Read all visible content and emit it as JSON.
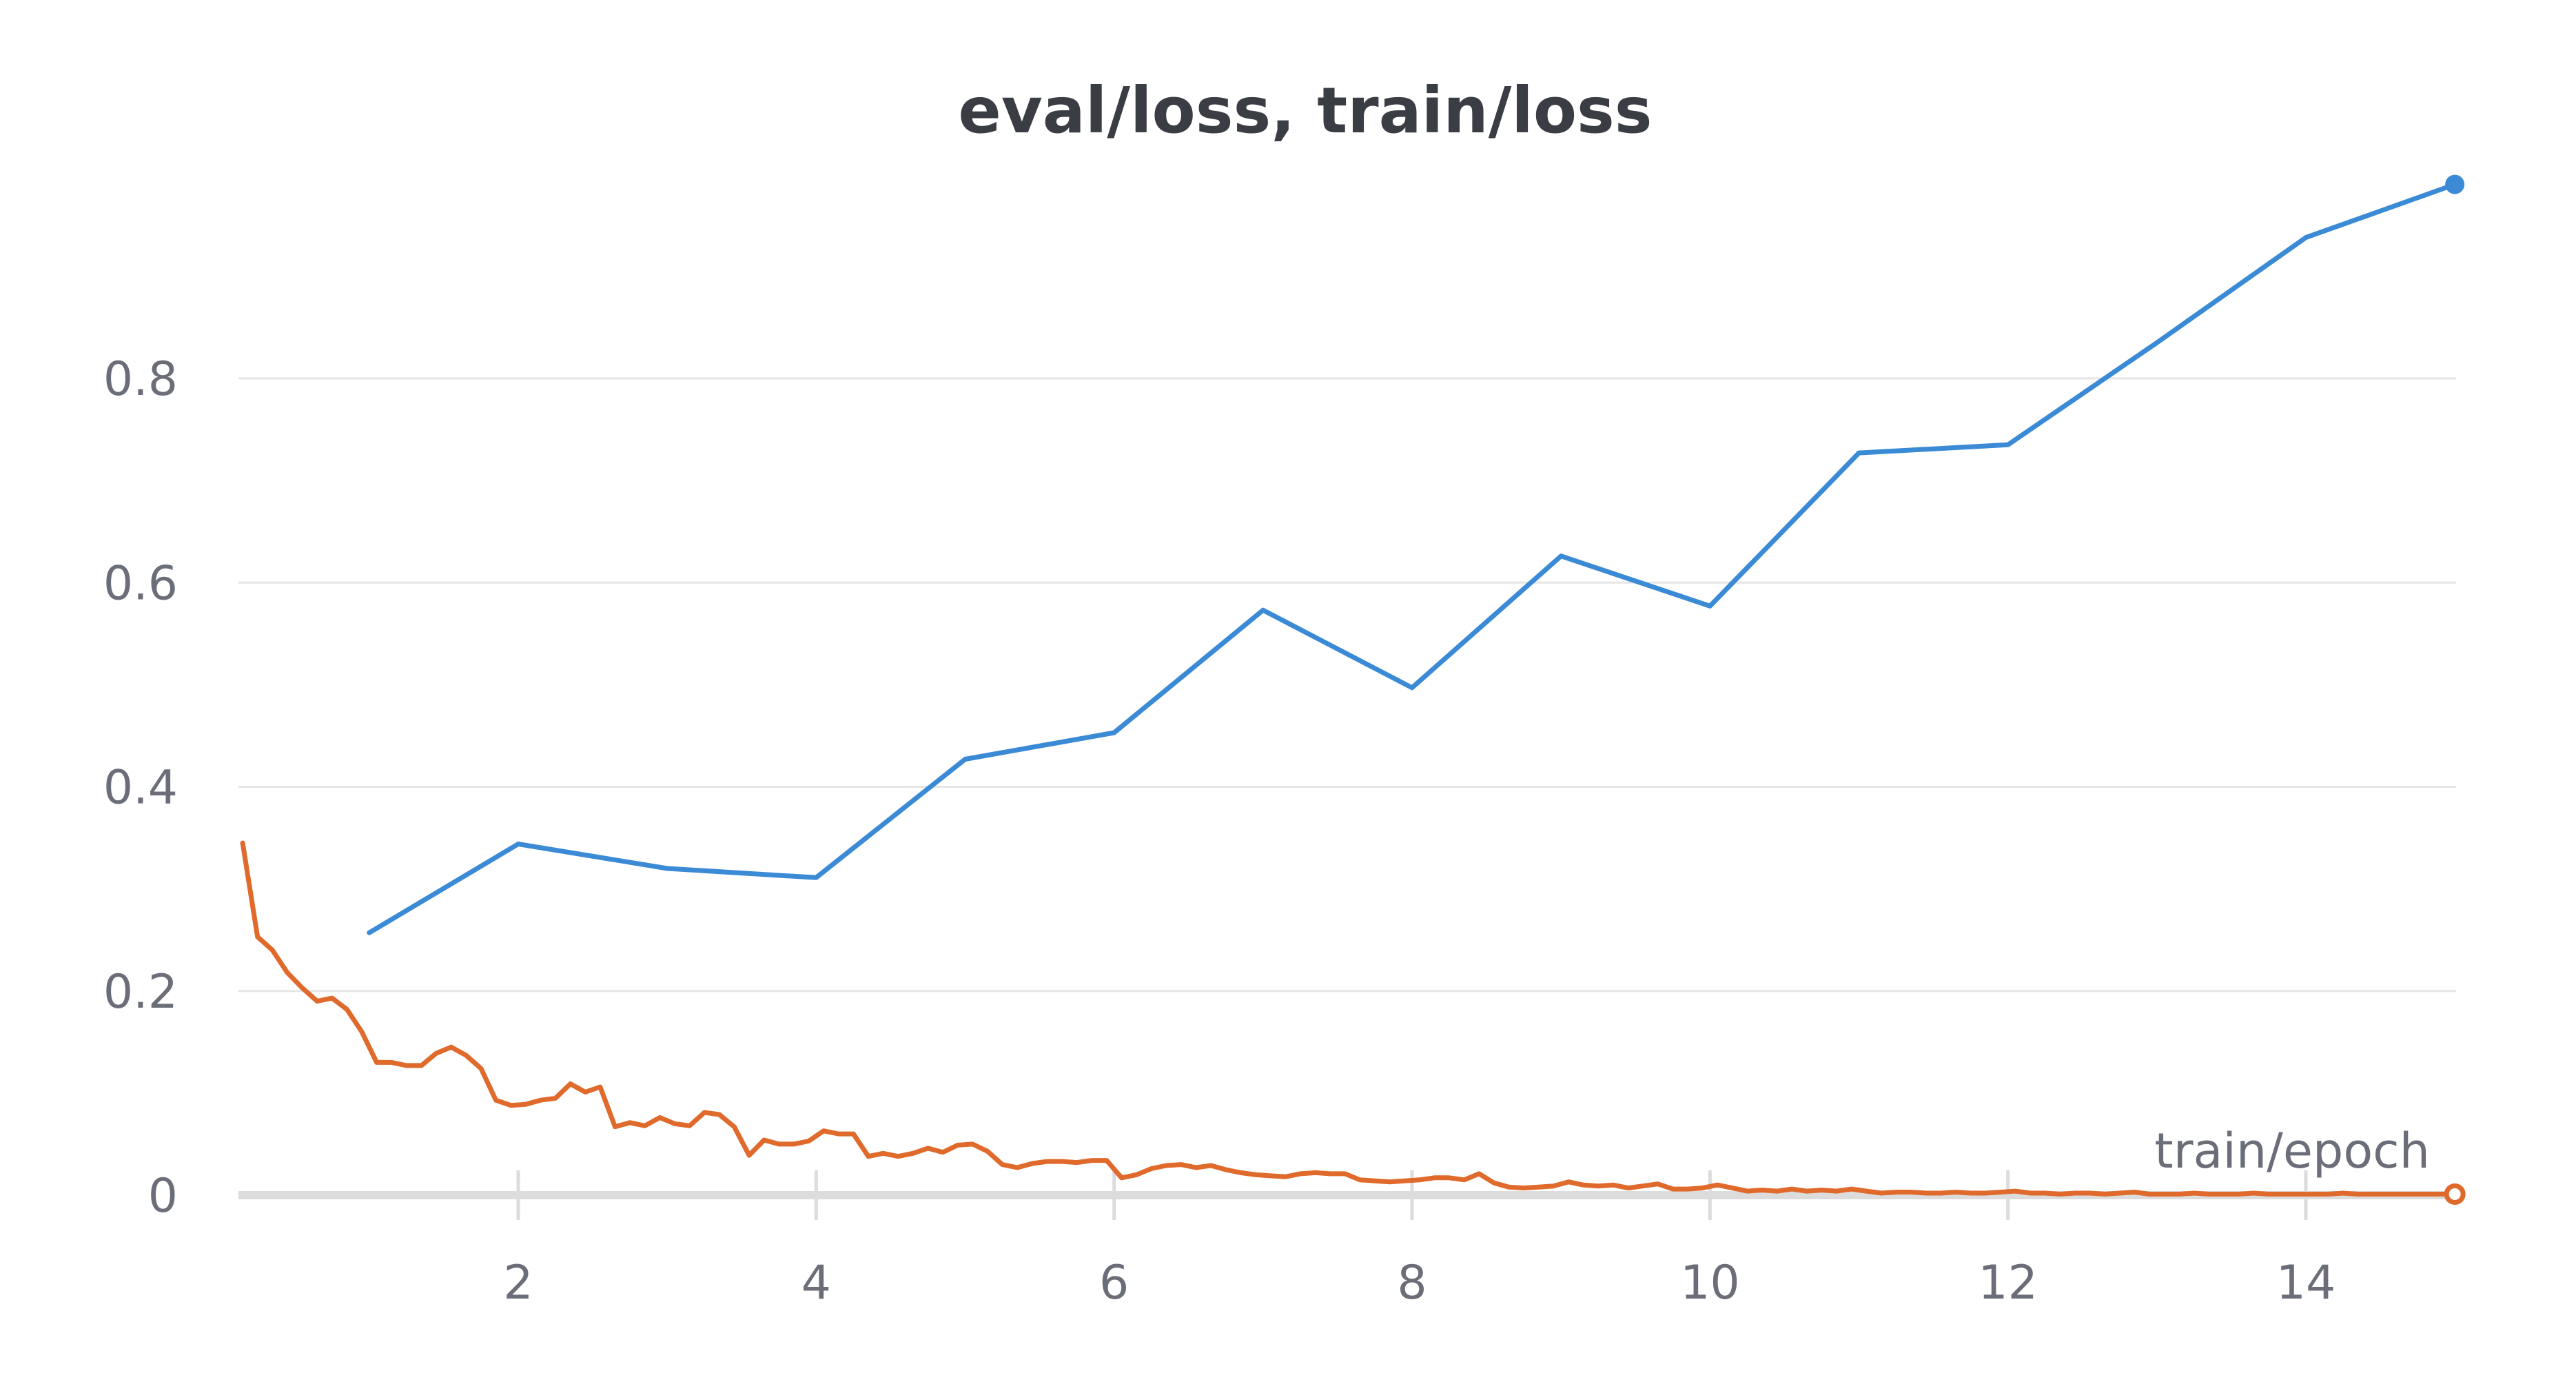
{
  "chart_data": {
    "type": "line",
    "title": "eval/loss, train/loss",
    "xlabel": "train/epoch",
    "ylabel": "",
    "xlim": [
      0.15,
      15
    ],
    "ylim": [
      -0.02,
      1.0
    ],
    "x_ticks": [
      2,
      4,
      6,
      8,
      10,
      12,
      14
    ],
    "y_ticks": [
      0,
      0.2,
      0.4,
      0.6,
      0.8
    ],
    "x_tick_labels": [
      "2",
      "4",
      "6",
      "8",
      "10",
      "12",
      "14"
    ],
    "y_tick_labels": [
      "0",
      "0.2",
      "0.4",
      "0.6",
      "0.8"
    ],
    "grid": true,
    "legend": "none",
    "series": [
      {
        "color": "#3a8ad6",
        "marker_at_end": "filled",
        "x": [
          1,
          2,
          3,
          4,
          5,
          6,
          7,
          8,
          9,
          10,
          11,
          12,
          13,
          14,
          15
        ],
        "y": [
          0.257,
          0.344,
          0.32,
          0.311,
          0.427,
          0.453,
          0.573,
          0.497,
          0.626,
          0.577,
          0.727,
          0.735,
          0.835,
          0.938,
          0.99
        ]
      },
      {
        "color": "#e06a2c",
        "marker_at_end": "hollow",
        "x": [
          0.15,
          0.25,
          0.35,
          0.45,
          0.55,
          0.65,
          0.75,
          0.85,
          0.95,
          1.05,
          1.15,
          1.25,
          1.35,
          1.45,
          1.55,
          1.65,
          1.75,
          1.85,
          1.95,
          2.05,
          2.15,
          2.25,
          2.35,
          2.45,
          2.55,
          2.65,
          2.75,
          2.85,
          2.95,
          3.05,
          3.15,
          3.25,
          3.35,
          3.45,
          3.55,
          3.65,
          3.75,
          3.85,
          3.95,
          4.05,
          4.15,
          4.25,
          4.35,
          4.45,
          4.55,
          4.65,
          4.75,
          4.85,
          4.95,
          5.05,
          5.15,
          5.25,
          5.35,
          5.45,
          5.55,
          5.65,
          5.75,
          5.85,
          5.95,
          6.05,
          6.15,
          6.25,
          6.35,
          6.45,
          6.55,
          6.65,
          6.75,
          6.85,
          6.95,
          7.05,
          7.15,
          7.25,
          7.35,
          7.45,
          7.55,
          7.65,
          7.75,
          7.85,
          7.95,
          8.05,
          8.15,
          8.25,
          8.35,
          8.45,
          8.55,
          8.65,
          8.75,
          8.85,
          8.95,
          9.05,
          9.15,
          9.25,
          9.35,
          9.45,
          9.55,
          9.65,
          9.75,
          9.85,
          9.95,
          10.05,
          10.15,
          10.25,
          10.35,
          10.45,
          10.55,
          10.65,
          10.75,
          10.85,
          10.95,
          11.05,
          11.15,
          11.25,
          11.35,
          11.45,
          11.55,
          11.65,
          11.75,
          11.85,
          11.95,
          12.05,
          12.15,
          12.25,
          12.35,
          12.45,
          12.55,
          12.65,
          12.75,
          12.85,
          12.95,
          13.05,
          13.15,
          13.25,
          13.35,
          13.45,
          13.55,
          13.65,
          13.75,
          13.85,
          13.95,
          14.05,
          14.15,
          14.25,
          14.35,
          14.45,
          14.55,
          14.65,
          14.75,
          14.85,
          14.95,
          15.0
        ],
        "y": [
          0.345,
          0.253,
          0.24,
          0.218,
          0.203,
          0.19,
          0.193,
          0.182,
          0.16,
          0.13,
          0.13,
          0.127,
          0.127,
          0.139,
          0.145,
          0.137,
          0.124,
          0.093,
          0.088,
          0.089,
          0.093,
          0.095,
          0.109,
          0.101,
          0.106,
          0.067,
          0.071,
          0.068,
          0.076,
          0.07,
          0.068,
          0.081,
          0.079,
          0.067,
          0.039,
          0.054,
          0.05,
          0.05,
          0.053,
          0.063,
          0.06,
          0.06,
          0.038,
          0.041,
          0.038,
          0.041,
          0.046,
          0.042,
          0.049,
          0.05,
          0.043,
          0.03,
          0.027,
          0.031,
          0.033,
          0.033,
          0.032,
          0.034,
          0.034,
          0.017,
          0.02,
          0.026,
          0.029,
          0.03,
          0.027,
          0.029,
          0.025,
          0.022,
          0.02,
          0.019,
          0.018,
          0.021,
          0.022,
          0.021,
          0.021,
          0.015,
          0.014,
          0.013,
          0.014,
          0.015,
          0.017,
          0.017,
          0.015,
          0.021,
          0.012,
          0.008,
          0.007,
          0.008,
          0.009,
          0.013,
          0.01,
          0.009,
          0.01,
          0.007,
          0.009,
          0.011,
          0.006,
          0.006,
          0.007,
          0.01,
          0.007,
          0.004,
          0.005,
          0.004,
          0.006,
          0.004,
          0.005,
          0.004,
          0.006,
          0.004,
          0.002,
          0.003,
          0.003,
          0.002,
          0.002,
          0.003,
          0.002,
          0.002,
          0.003,
          0.004,
          0.002,
          0.002,
          0.001,
          0.002,
          0.002,
          0.001,
          0.002,
          0.003,
          0.001,
          0.001,
          0.001,
          0.002,
          0.001,
          0.001,
          0.001,
          0.002,
          0.001,
          0.001,
          0.001,
          0.001,
          0.001,
          0.002,
          0.001,
          0.001,
          0.001,
          0.001,
          0.001,
          0.001,
          0.001,
          0.001
        ]
      }
    ]
  }
}
